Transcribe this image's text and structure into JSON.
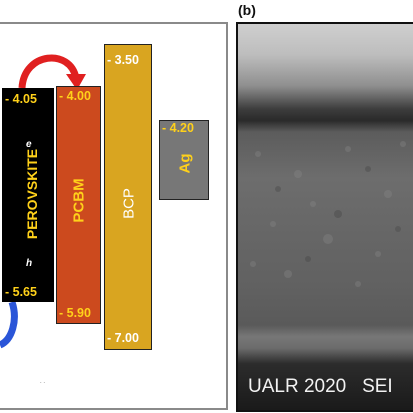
{
  "panel_b_label": "(b)",
  "layers": {
    "perovskite": {
      "name": "PEROVSKITE",
      "top": "- 4.05",
      "bottom": "- 5.65",
      "electron": "e",
      "hole": "h"
    },
    "pcbm": {
      "name": "PCBM",
      "top": "- 4.00",
      "bottom": "- 5.90"
    },
    "bcp": {
      "name": "BCP",
      "top": "- 3.50",
      "bottom": "- 7.00"
    },
    "ag": {
      "name": "Ag",
      "level": "- 4.20"
    }
  },
  "sem_caption": "UALR 2020   SEI",
  "colors": {
    "perovskite": "#000000",
    "pcbm": "#cc4a1e",
    "bcp": "#d9a520",
    "ag": "#777777",
    "level_text": "#ffd11a",
    "electron_arrow": "#e02020",
    "hole_arrow": "#2a55d8"
  }
}
